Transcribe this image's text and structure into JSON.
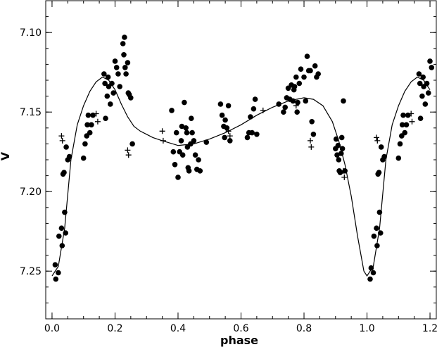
{
  "chart_data": {
    "type": "scatter",
    "title": "",
    "xlabel": "phase",
    "ylabel": "V",
    "xlim": [
      -0.02,
      1.22
    ],
    "ylim": [
      7.08,
      7.28
    ],
    "y_inverted": true,
    "grid": false,
    "x_ticks": [
      "0.0",
      "0.2",
      "0.4",
      "0.6",
      "0.8",
      "1.0",
      "1.2"
    ],
    "y_ticks": [
      "7.10",
      "7.15",
      "7.20",
      "7.25"
    ],
    "series": [
      {
        "marker": "filled-circle",
        "points": [
          [
            0.01,
            7.246
          ],
          [
            0.012,
            7.255
          ],
          [
            0.02,
            7.251
          ],
          [
            0.022,
            7.228
          ],
          [
            0.03,
            7.223
          ],
          [
            0.032,
            7.234
          ],
          [
            0.035,
            7.189
          ],
          [
            0.038,
            7.188
          ],
          [
            0.04,
            7.213
          ],
          [
            0.043,
            7.226
          ],
          [
            0.045,
            7.172
          ],
          [
            0.05,
            7.18
          ],
          [
            0.055,
            7.178
          ],
          [
            0.1,
            7.179
          ],
          [
            0.105,
            7.17
          ],
          [
            0.11,
            7.165
          ],
          [
            0.112,
            7.158
          ],
          [
            0.115,
            7.152
          ],
          [
            0.12,
            7.163
          ],
          [
            0.125,
            7.158
          ],
          [
            0.13,
            7.152
          ],
          [
            0.165,
            7.126
          ],
          [
            0.168,
            7.132
          ],
          [
            0.17,
            7.154
          ],
          [
            0.175,
            7.14
          ],
          [
            0.178,
            7.128
          ],
          [
            0.18,
            7.134
          ],
          [
            0.185,
            7.145
          ],
          [
            0.19,
            7.132
          ],
          [
            0.195,
            7.138
          ],
          [
            0.2,
            7.118
          ],
          [
            0.205,
            7.122
          ],
          [
            0.21,
            7.126
          ],
          [
            0.215,
            7.134
          ],
          [
            0.225,
            7.107
          ],
          [
            0.228,
            7.114
          ],
          [
            0.23,
            7.103
          ],
          [
            0.232,
            7.122
          ],
          [
            0.235,
            7.126
          ],
          [
            0.24,
            7.119
          ],
          [
            0.242,
            7.138
          ],
          [
            0.245,
            7.139
          ],
          [
            0.25,
            7.141
          ],
          [
            0.255,
            7.17
          ],
          [
            0.38,
            7.149
          ],
          [
            0.385,
            7.175
          ],
          [
            0.39,
            7.183
          ],
          [
            0.395,
            7.163
          ],
          [
            0.4,
            7.191
          ],
          [
            0.405,
            7.175
          ],
          [
            0.41,
            7.168
          ],
          [
            0.412,
            7.159
          ],
          [
            0.415,
            7.177
          ],
          [
            0.42,
            7.144
          ],
          [
            0.425,
            7.16
          ],
          [
            0.428,
            7.163
          ],
          [
            0.43,
            7.172
          ],
          [
            0.432,
            7.185
          ],
          [
            0.435,
            7.187
          ],
          [
            0.44,
            7.17
          ],
          [
            0.442,
            7.154
          ],
          [
            0.445,
            7.163
          ],
          [
            0.45,
            7.168
          ],
          [
            0.455,
            7.177
          ],
          [
            0.46,
            7.186
          ],
          [
            0.465,
            7.18
          ],
          [
            0.47,
            7.187
          ],
          [
            0.49,
            7.169
          ],
          [
            0.535,
            7.145
          ],
          [
            0.54,
            7.152
          ],
          [
            0.545,
            7.159
          ],
          [
            0.548,
            7.166
          ],
          [
            0.55,
            7.155
          ],
          [
            0.555,
            7.16
          ],
          [
            0.56,
            7.146
          ],
          [
            0.565,
            7.168
          ],
          [
            0.62,
            7.166
          ],
          [
            0.625,
            7.163
          ],
          [
            0.63,
            7.153
          ],
          [
            0.635,
            7.163
          ],
          [
            0.64,
            7.148
          ],
          [
            0.645,
            7.142
          ],
          [
            0.65,
            7.164
          ],
          [
            0.72,
            7.145
          ],
          [
            0.735,
            7.15
          ],
          [
            0.74,
            7.147
          ],
          [
            0.745,
            7.141
          ],
          [
            0.75,
            7.135
          ],
          [
            0.755,
            7.142
          ],
          [
            0.76,
            7.133
          ],
          [
            0.765,
            7.143
          ],
          [
            0.768,
            7.136
          ],
          [
            0.77,
            7.134
          ],
          [
            0.775,
            7.128
          ],
          [
            0.778,
            7.15
          ],
          [
            0.78,
            7.144
          ],
          [
            0.785,
            7.132
          ],
          [
            0.79,
            7.123
          ],
          [
            0.8,
            7.128
          ],
          [
            0.805,
            7.143
          ],
          [
            0.81,
            7.115
          ],
          [
            0.815,
            7.124
          ],
          [
            0.82,
            7.124
          ],
          [
            0.825,
            7.156
          ],
          [
            0.83,
            7.164
          ],
          [
            0.835,
            7.121
          ],
          [
            0.84,
            7.128
          ],
          [
            0.845,
            7.126
          ],
          [
            0.9,
            7.173
          ],
          [
            0.902,
            7.167
          ],
          [
            0.905,
            7.177
          ],
          [
            0.908,
            7.171
          ],
          [
            0.91,
            7.18
          ],
          [
            0.912,
            7.187
          ],
          [
            0.915,
            7.188
          ],
          [
            0.918,
            7.176
          ],
          [
            0.92,
            7.166
          ],
          [
            0.922,
            7.173
          ],
          [
            0.925,
            7.143
          ],
          [
            0.93,
            7.187
          ],
          [
            1.01,
            7.255
          ],
          [
            1.013,
            7.248
          ],
          [
            1.02,
            7.251
          ],
          [
            1.022,
            7.228
          ],
          [
            1.03,
            7.223
          ],
          [
            1.032,
            7.234
          ],
          [
            1.035,
            7.189
          ],
          [
            1.038,
            7.188
          ],
          [
            1.04,
            7.213
          ],
          [
            1.043,
            7.226
          ],
          [
            1.045,
            7.172
          ],
          [
            1.05,
            7.18
          ],
          [
            1.055,
            7.178
          ],
          [
            1.1,
            7.179
          ],
          [
            1.105,
            7.17
          ],
          [
            1.11,
            7.165
          ],
          [
            1.112,
            7.158
          ],
          [
            1.115,
            7.152
          ],
          [
            1.12,
            7.163
          ],
          [
            1.125,
            7.158
          ],
          [
            1.13,
            7.152
          ],
          [
            1.165,
            7.126
          ],
          [
            1.168,
            7.132
          ],
          [
            1.17,
            7.154
          ],
          [
            1.175,
            7.14
          ],
          [
            1.178,
            7.128
          ],
          [
            1.18,
            7.134
          ],
          [
            1.185,
            7.145
          ],
          [
            1.19,
            7.132
          ],
          [
            1.195,
            7.138
          ],
          [
            1.2,
            7.118
          ],
          [
            1.205,
            7.122
          ]
        ]
      },
      {
        "marker": "plus",
        "points": [
          [
            0.03,
            7.165
          ],
          [
            0.033,
            7.168
          ],
          [
            0.14,
            7.151
          ],
          [
            0.145,
            7.156
          ],
          [
            0.24,
            7.174
          ],
          [
            0.243,
            7.177
          ],
          [
            0.35,
            7.162
          ],
          [
            0.353,
            7.168
          ],
          [
            0.56,
            7.162
          ],
          [
            0.565,
            7.165
          ],
          [
            0.67,
            7.149
          ],
          [
            0.775,
            7.146
          ],
          [
            0.82,
            7.168
          ],
          [
            0.823,
            7.172
          ],
          [
            0.925,
            7.187
          ],
          [
            0.928,
            7.191
          ],
          [
            1.03,
            7.166
          ],
          [
            1.033,
            7.168
          ],
          [
            1.14,
            7.151
          ],
          [
            1.143,
            7.156
          ]
        ]
      },
      {
        "marker": "line",
        "points": [
          [
            0.0,
            7.253
          ],
          [
            0.02,
            7.247
          ],
          [
            0.04,
            7.223
          ],
          [
            0.06,
            7.18
          ],
          [
            0.08,
            7.158
          ],
          [
            0.1,
            7.146
          ],
          [
            0.12,
            7.137
          ],
          [
            0.14,
            7.131
          ],
          [
            0.16,
            7.128
          ],
          [
            0.18,
            7.13
          ],
          [
            0.2,
            7.136
          ],
          [
            0.22,
            7.145
          ],
          [
            0.24,
            7.153
          ],
          [
            0.26,
            7.159
          ],
          [
            0.28,
            7.162
          ],
          [
            0.3,
            7.164
          ],
          [
            0.32,
            7.166
          ],
          [
            0.35,
            7.168
          ],
          [
            0.4,
            7.171
          ],
          [
            0.45,
            7.17
          ],
          [
            0.5,
            7.167
          ],
          [
            0.55,
            7.163
          ],
          [
            0.6,
            7.158
          ],
          [
            0.65,
            7.152
          ],
          [
            0.7,
            7.147
          ],
          [
            0.75,
            7.143
          ],
          [
            0.8,
            7.141
          ],
          [
            0.83,
            7.142
          ],
          [
            0.86,
            7.146
          ],
          [
            0.89,
            7.156
          ],
          [
            0.91,
            7.168
          ],
          [
            0.93,
            7.183
          ],
          [
            0.95,
            7.203
          ],
          [
            0.97,
            7.228
          ],
          [
            0.99,
            7.25
          ],
          [
            1.0,
            7.253
          ],
          [
            1.02,
            7.247
          ],
          [
            1.04,
            7.223
          ],
          [
            1.06,
            7.18
          ],
          [
            1.08,
            7.158
          ],
          [
            1.1,
            7.146
          ],
          [
            1.12,
            7.137
          ],
          [
            1.14,
            7.131
          ],
          [
            1.16,
            7.128
          ],
          [
            1.18,
            7.13
          ],
          [
            1.2,
            7.136
          ]
        ]
      }
    ]
  }
}
